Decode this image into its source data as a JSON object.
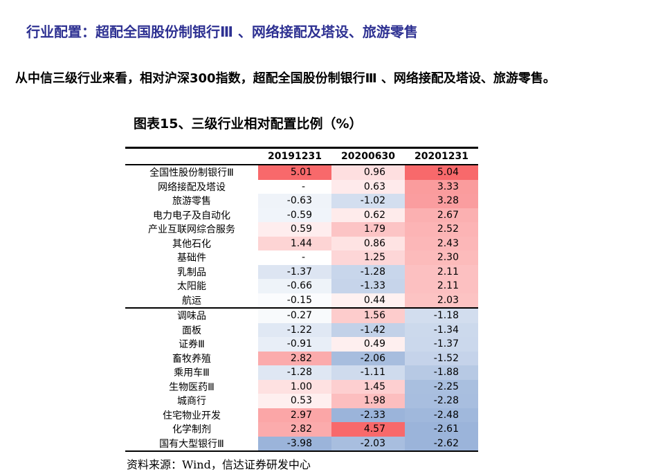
{
  "title": "行业配置：超配全国股份制银行Ⅲ 、网络接配及塔设、旅游零售",
  "lead": "从中信三级行业来看，相对沪深300指数，超配全国股份制银行Ⅲ 、网络接配及塔设、旅游零售。",
  "chart_title": "图表15、三级行业相对配置比例（%）",
  "source": "资料来源：Wind，信达证券研发中心",
  "colors": {
    "positive": "#f8696b",
    "negative": "#9bb4da",
    "neutral": "#ffffff"
  },
  "chart_data": {
    "type": "table",
    "columns": [
      "20191231",
      "20200630",
      "20201231"
    ],
    "rows": [
      {
        "name": "全国性股份制银行Ⅲ",
        "values": [
          "5.01",
          "0.96",
          "5.04"
        ]
      },
      {
        "name": "网络接配及塔设",
        "values": [
          "-",
          "0.63",
          "3.33"
        ]
      },
      {
        "name": "旅游零售",
        "values": [
          "-0.63",
          "-1.02",
          "3.28"
        ]
      },
      {
        "name": "电力电子及自动化",
        "values": [
          "-0.59",
          "0.62",
          "2.67"
        ]
      },
      {
        "name": "产业互联网综合服务",
        "values": [
          "0.59",
          "1.79",
          "2.52"
        ]
      },
      {
        "name": "其他石化",
        "values": [
          "1.44",
          "0.86",
          "2.43"
        ]
      },
      {
        "name": "基础件",
        "values": [
          "-",
          "1.25",
          "2.30"
        ]
      },
      {
        "name": "乳制品",
        "values": [
          "-1.37",
          "-1.28",
          "2.11"
        ]
      },
      {
        "name": "太阳能",
        "values": [
          "-0.66",
          "-1.33",
          "2.11"
        ]
      },
      {
        "name": "航运",
        "values": [
          "-0.15",
          "0.44",
          "2.03"
        ]
      },
      {
        "name": "调味品",
        "values": [
          "-0.27",
          "1.56",
          "-1.18"
        ]
      },
      {
        "name": "面板",
        "values": [
          "-1.22",
          "-1.42",
          "-1.34"
        ]
      },
      {
        "name": "证券Ⅲ",
        "values": [
          "-0.91",
          "0.49",
          "-1.37"
        ]
      },
      {
        "name": "畜牧养殖",
        "values": [
          "2.82",
          "-2.06",
          "-1.52"
        ]
      },
      {
        "name": "乘用车Ⅲ",
        "values": [
          "-1.28",
          "-1.11",
          "-1.88"
        ]
      },
      {
        "name": "生物医药Ⅲ",
        "values": [
          "1.00",
          "1.45",
          "-2.25"
        ]
      },
      {
        "name": "城商行",
        "values": [
          "0.53",
          "1.98",
          "-2.28"
        ]
      },
      {
        "name": "住宅物业开发",
        "values": [
          "2.97",
          "-2.33",
          "-2.48"
        ]
      },
      {
        "name": "化学制剂",
        "values": [
          "2.82",
          "4.57",
          "-2.61"
        ]
      },
      {
        "name": "国有大型银行Ⅲ",
        "values": [
          "-3.98",
          "-2.03",
          "-2.62"
        ]
      }
    ]
  }
}
